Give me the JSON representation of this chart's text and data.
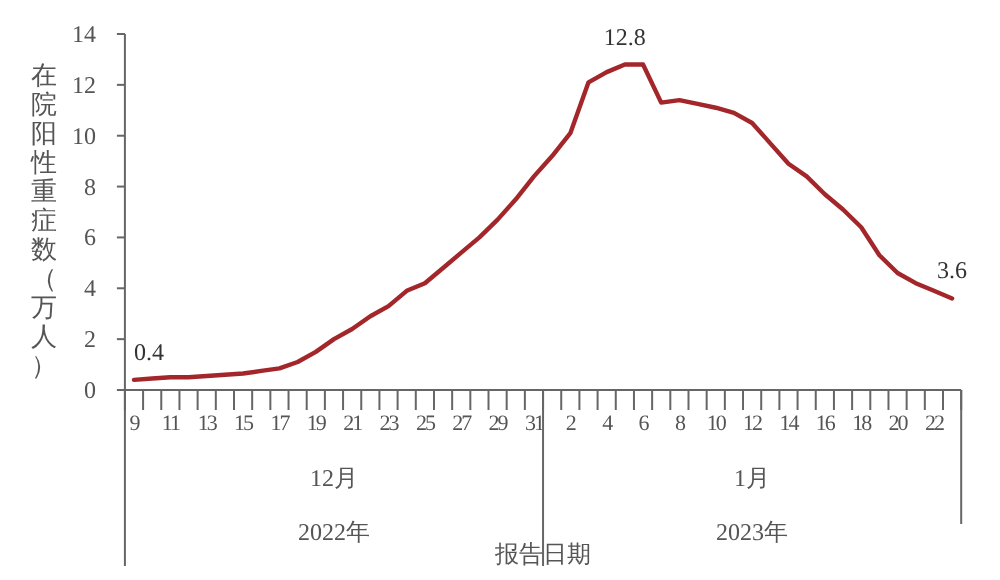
{
  "chart_data": {
    "type": "line",
    "categories": [
      "9",
      null,
      "11",
      null,
      "13",
      null,
      "15",
      null,
      "17",
      null,
      "19",
      null,
      "21",
      null,
      "23",
      null,
      "25",
      null,
      "27",
      null,
      "29",
      null,
      "31",
      null,
      "2",
      null,
      "4",
      null,
      "6",
      null,
      "8",
      null,
      "10",
      null,
      "12",
      null,
      "14",
      null,
      "16",
      null,
      "18",
      null,
      "20",
      null,
      "22",
      null
    ],
    "series": [
      {
        "color": "#a3262a",
        "values": [
          0.4,
          0.45,
          0.5,
          0.5,
          0.55,
          0.6,
          0.65,
          0.75,
          0.85,
          1.1,
          1.5,
          2.0,
          2.4,
          2.9,
          3.3,
          3.9,
          4.2,
          4.8,
          5.4,
          6.0,
          6.7,
          7.5,
          8.4,
          9.2,
          10.1,
          12.1,
          12.5,
          12.8,
          12.8,
          11.3,
          11.4,
          11.25,
          11.1,
          10.9,
          10.5,
          9.7,
          8.9,
          8.4,
          7.7,
          7.1,
          6.4,
          5.3,
          4.6,
          4.2,
          3.9,
          3.6
        ],
        "value_labels": [
          "0.4",
          null,
          null,
          null,
          null,
          null,
          null,
          null,
          null,
          null,
          null,
          null,
          null,
          null,
          null,
          null,
          null,
          null,
          null,
          null,
          null,
          null,
          null,
          null,
          null,
          null,
          null,
          "12.8",
          null,
          null,
          null,
          null,
          null,
          null,
          null,
          null,
          null,
          null,
          null,
          null,
          null,
          null,
          null,
          null,
          null,
          "3.6"
        ]
      }
    ],
    "ylim": [
      0,
      14
    ],
    "yticks": [
      0,
      2,
      4,
      6,
      8,
      10,
      12,
      14
    ],
    "ylabel": "在院阳性重症数（万人）",
    "xlabel": "报告日期",
    "annotations": [
      "12月",
      "1月",
      "2022年",
      "2023年"
    ],
    "grid": false,
    "marker": "none",
    "line_style": "solid"
  }
}
